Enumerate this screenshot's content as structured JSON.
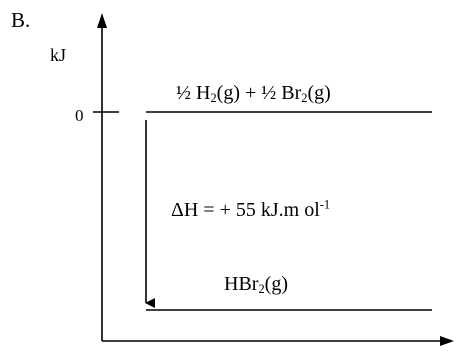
{
  "option_label": "B.",
  "y_axis": {
    "unit_label": "kJ",
    "zero_tick_label": "0"
  },
  "reactants": {
    "frac1": "½",
    "species1": "H",
    "species1_sub": "2",
    "state1": "(g)",
    "plus": "+",
    "frac2": "½",
    "species2": "Br",
    "species2_sub": "2",
    "state2": "(g)"
  },
  "enthalpy": {
    "prefix": "ΔH = + 55 kJ.m ol",
    "exponent": "-1"
  },
  "product": {
    "species": "HBr",
    "species_sub": "2",
    "state": "(g)"
  },
  "colors": {
    "line": "#000000",
    "background": "#ffffff"
  }
}
